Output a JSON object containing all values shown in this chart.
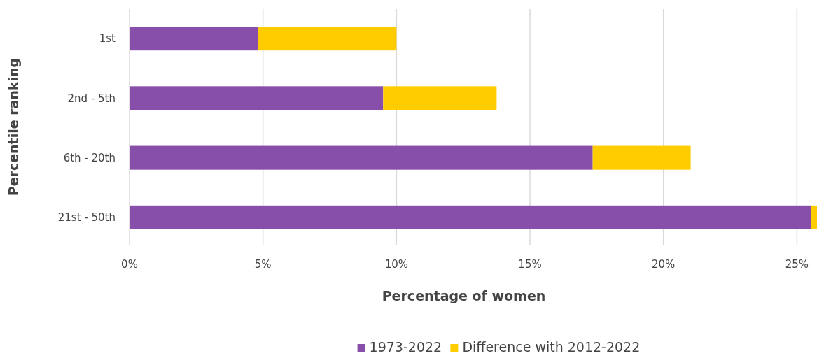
{
  "chart_data": {
    "type": "bar",
    "orientation": "horizontal",
    "stacked": true,
    "xlabel": "Percentage of women",
    "ylabel": "Percentile ranking",
    "categories": [
      "1st",
      "2nd - 5th",
      "6th - 20th",
      "21st - 50th"
    ],
    "series": [
      {
        "name": "1973-2022",
        "color": "#874fa9",
        "values": [
          4.8,
          9.5,
          17.35,
          25.53
        ]
      },
      {
        "name": "Difference with 2012-2022",
        "color": "#ffcc00",
        "values": [
          5.2,
          4.25,
          3.67,
          0.22
        ]
      }
    ],
    "xlim": [
      0,
      25.75
    ],
    "xticks": [
      {
        "value": 0,
        "label": "0%"
      },
      {
        "value": 5,
        "label": "5%"
      },
      {
        "value": 10,
        "label": "10%"
      },
      {
        "value": 15,
        "label": "15%"
      },
      {
        "value": 20,
        "label": "20%"
      },
      {
        "value": 25,
        "label": "25%"
      }
    ],
    "grid": "x",
    "legend": "bottom"
  }
}
